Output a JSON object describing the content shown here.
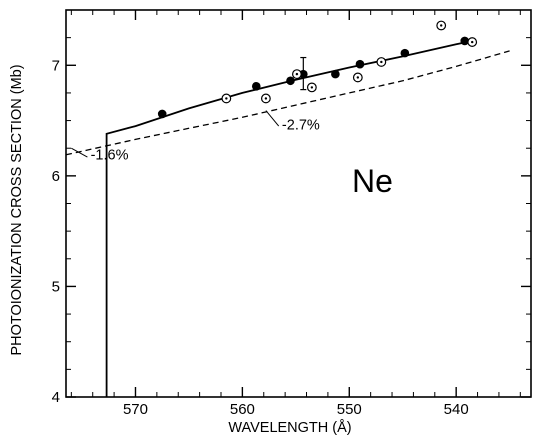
{
  "chart_data": {
    "type": "scatter",
    "title": "",
    "element_label": "Ne",
    "xlabel": "WAVELENGTH (Å)",
    "ylabel": "PHOTOIONIZATION CROSS SECTION  (Mb)",
    "xlim": [
      576.5,
      533
    ],
    "ylim": [
      4,
      7.5
    ],
    "x_axis_reversed": true,
    "x_ticks": [
      570,
      560,
      550,
      540
    ],
    "y_ticks": [
      4,
      5,
      6,
      7
    ],
    "grid": false,
    "series": [
      {
        "marker": "filled-circle",
        "x": [
          567.5,
          558.7,
          555.5,
          554.3,
          551.3,
          549.0,
          544.8,
          539.2
        ],
        "y": [
          6.56,
          6.81,
          6.86,
          6.92,
          6.92,
          7.01,
          7.11,
          7.22
        ]
      },
      {
        "marker": "open-circle-dot",
        "x": [
          561.5,
          557.8,
          554.9,
          553.5,
          549.2,
          547.0,
          541.4,
          538.5
        ],
        "y": [
          6.7,
          6.7,
          6.92,
          6.8,
          6.89,
          7.03,
          7.36,
          7.21
        ]
      }
    ],
    "fit_curve": {
      "style": "solid",
      "threshold_x": 572.7,
      "x": [
        572.7,
        572.7,
        570,
        565,
        560,
        555,
        550,
        545,
        540,
        538.5
      ],
      "y": [
        4.0,
        6.38,
        6.45,
        6.61,
        6.75,
        6.87,
        6.98,
        7.08,
        7.19,
        7.22
      ]
    },
    "dashed_curve": {
      "style": "dashed",
      "x": [
        576.5,
        570,
        565,
        560,
        555,
        550,
        545,
        540,
        535
      ],
      "y": [
        6.19,
        6.33,
        6.43,
        6.53,
        6.64,
        6.75,
        6.86,
        6.99,
        7.13
      ]
    },
    "annotations": [
      {
        "text": "-1.6%",
        "x": 574.2,
        "y": 6.15,
        "leader_x": [
          576.0,
          574.5
        ],
        "leader_y": [
          6.25,
          6.17
        ]
      },
      {
        "text": "-2.7%",
        "x": 556.3,
        "y": 6.42,
        "leader_x": [
          557.8,
          556.6
        ],
        "leader_y": [
          6.59,
          6.45
        ]
      }
    ]
  }
}
